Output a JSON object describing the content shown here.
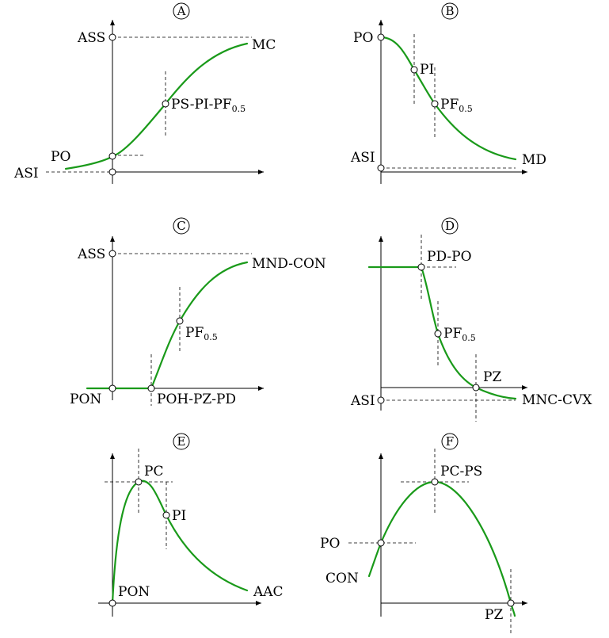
{
  "panels": {
    "A": {
      "letter": "A",
      "labels": {
        "ass": "ASS",
        "mc": "MC",
        "ps_pi_pf": "PS-PI-PF",
        "ps_pi_pf_sub": "0.5",
        "po": "PO",
        "asi": "ASI"
      }
    },
    "B": {
      "letter": "B",
      "labels": {
        "po": "PO",
        "pi": "PI",
        "pf": "PF",
        "pf_sub": "0.5",
        "asi": "ASI",
        "md": "MD"
      }
    },
    "C": {
      "letter": "C",
      "labels": {
        "ass": "ASS",
        "mnd_con": "MND-CON",
        "pf": "PF",
        "pf_sub": "0.5",
        "pon": "PON",
        "poh_pz_pd": "POH-PZ-PD"
      }
    },
    "D": {
      "letter": "D",
      "labels": {
        "pd_po": "PD-PO",
        "pf": "PF",
        "pf_sub": "0.5",
        "pz": "PZ",
        "asi": "ASI",
        "mnc_cvx": "MNC-CVX"
      }
    },
    "E": {
      "letter": "E",
      "labels": {
        "pc": "PC",
        "pi": "PI",
        "pon": "PON",
        "aac": "AAC"
      }
    },
    "F": {
      "letter": "F",
      "labels": {
        "pc_ps": "PC-PS",
        "po": "PO",
        "con": "CON",
        "pz": "PZ"
      }
    }
  },
  "colors": {
    "curve": "#1a9a1a",
    "axis": "#000000",
    "background": "#ffffff"
  }
}
